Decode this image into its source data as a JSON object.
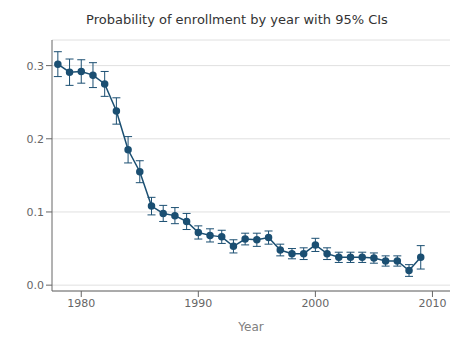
{
  "chart_data": {
    "type": "line",
    "title": "Probability of enrollment by year with 95% CIs",
    "xlabel": "Year",
    "x": [
      1978,
      1979,
      1980,
      1981,
      1982,
      1983,
      1984,
      1985,
      1986,
      1987,
      1988,
      1989,
      1990,
      1991,
      1992,
      1993,
      1994,
      1995,
      1996,
      1997,
      1998,
      1999,
      2000,
      2001,
      2002,
      2003,
      2004,
      2005,
      2006,
      2007,
      2008,
      2009
    ],
    "values": [
      0.302,
      0.291,
      0.292,
      0.287,
      0.275,
      0.238,
      0.185,
      0.155,
      0.108,
      0.098,
      0.095,
      0.087,
      0.072,
      0.068,
      0.066,
      0.053,
      0.063,
      0.062,
      0.065,
      0.048,
      0.043,
      0.043,
      0.055,
      0.043,
      0.038,
      0.038,
      0.038,
      0.037,
      0.033,
      0.033,
      0.02,
      0.038
    ],
    "ci_lower": [
      0.285,
      0.273,
      0.276,
      0.27,
      0.258,
      0.22,
      0.167,
      0.14,
      0.096,
      0.087,
      0.084,
      0.076,
      0.063,
      0.059,
      0.057,
      0.044,
      0.055,
      0.053,
      0.056,
      0.04,
      0.036,
      0.035,
      0.046,
      0.035,
      0.031,
      0.031,
      0.031,
      0.03,
      0.026,
      0.026,
      0.012,
      0.022
    ],
    "ci_upper": [
      0.319,
      0.309,
      0.308,
      0.304,
      0.292,
      0.256,
      0.203,
      0.17,
      0.12,
      0.109,
      0.106,
      0.098,
      0.081,
      0.077,
      0.075,
      0.062,
      0.071,
      0.071,
      0.074,
      0.056,
      0.05,
      0.051,
      0.064,
      0.051,
      0.045,
      0.045,
      0.045,
      0.044,
      0.04,
      0.04,
      0.028,
      0.054
    ],
    "color": "#1b4f72",
    "marker": "circle",
    "xlim": [
      1977.5,
      2011.5
    ],
    "xticks": [
      1980,
      1990,
      2000,
      2010
    ],
    "ylim": [
      -0.008,
      0.335
    ],
    "yticks": [
      {
        "value": 0,
        "label": "0.0"
      },
      0.1,
      0.2,
      0.3
    ],
    "grid": true
  }
}
